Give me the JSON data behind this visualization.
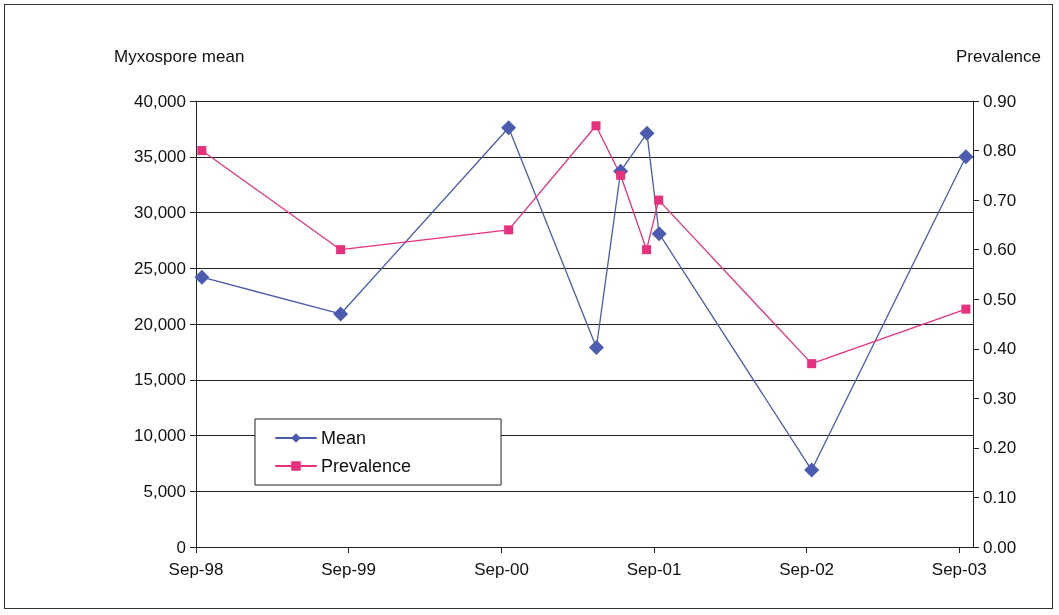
{
  "chart_data": {
    "type": "line",
    "ylabel": "Myxospore mean",
    "y2label": "Prevalence",
    "series": [
      {
        "name": "Mean",
        "color": "#4a5bb0",
        "marker": "diamond",
        "x": [
          "1998-09-15",
          "1999-08-13",
          "2000-09-18",
          "2001-04-16",
          "2001-06-13",
          "2001-08-15",
          "2001-09-13",
          "2002-09-13",
          "2003-09-17"
        ],
        "values": [
          24200,
          20900,
          37600,
          17900,
          33700,
          37100,
          28100,
          6900,
          35000
        ]
      },
      {
        "name": "Prevalence",
        "color": "#e8307f",
        "marker": "square",
        "axis": "y2",
        "x": [
          "1998-09-15",
          "1999-08-13",
          "2000-09-18",
          "2001-04-15",
          "2001-06-13",
          "2001-08-14",
          "2001-09-12",
          "2002-09-13",
          "2003-09-17"
        ],
        "values": [
          0.8,
          0.6,
          0.64,
          0.85,
          0.75,
          0.6,
          0.7,
          0.37,
          0.48
        ]
      }
    ],
    "xlim": [
      "1998-09-01",
      "2003-10-04"
    ],
    "xticks": [
      {
        "value": "1998-09-01",
        "label": "Sep-98"
      },
      {
        "value": "1999-09-01",
        "label": "Sep-99"
      },
      {
        "value": "2000-09-01",
        "label": "Sep-00"
      },
      {
        "value": "2001-09-01",
        "label": "Sep-01"
      },
      {
        "value": "2002-09-01",
        "label": "Sep-02"
      },
      {
        "value": "2003-09-01",
        "label": "Sep-03"
      }
    ],
    "ylim": [
      0,
      40000
    ],
    "yticks": [
      0,
      {
        "value": 5000,
        "label": "5,000"
      },
      {
        "value": 10000,
        "label": "10,000"
      },
      {
        "value": 15000,
        "label": "15,000"
      },
      {
        "value": 20000,
        "label": "20,000"
      },
      {
        "value": 25000,
        "label": "25,000"
      },
      {
        "value": 30000,
        "label": "30,000"
      },
      {
        "value": 35000,
        "label": "35,000"
      },
      {
        "value": 40000,
        "label": "40,000"
      }
    ],
    "y2lim": [
      0,
      0.9
    ],
    "y2ticks": [
      {
        "value": 0,
        "label": "0.00"
      },
      {
        "value": 0.1,
        "label": "0.10"
      },
      {
        "value": 0.2,
        "label": "0.20"
      },
      {
        "value": 0.3,
        "label": "0.30"
      },
      {
        "value": 0.4,
        "label": "0.40"
      },
      {
        "value": 0.5,
        "label": "0.50"
      },
      {
        "value": 0.6,
        "label": "0.60"
      },
      {
        "value": 0.7,
        "label": "0.70"
      },
      {
        "value": 0.8,
        "label": "0.80"
      },
      {
        "value": 0.9,
        "label": "0.90"
      }
    ],
    "grid": "y",
    "legend": "bottom left",
    "line_style": "solid"
  }
}
